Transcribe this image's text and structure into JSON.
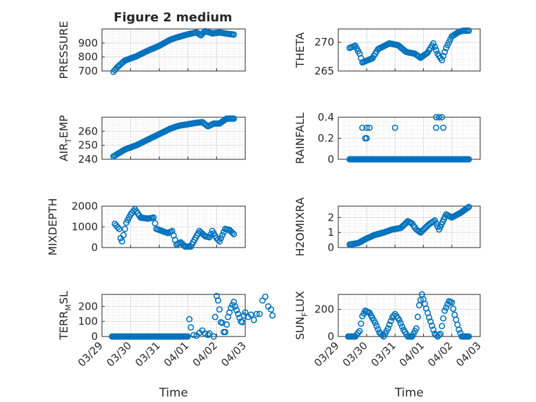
{
  "figure": {
    "title": "Figure 2 medium"
  },
  "colors": {
    "series": "#0072BD",
    "axis": "#262626",
    "grid": "#dcdcdc"
  },
  "chart_data": [
    {
      "type": "scatter",
      "id": "pressure",
      "title": "Figure 2 medium",
      "ylabel": "PRESSURE",
      "xlabel": "",
      "xlim": [
        "03/29",
        "04/03"
      ],
      "ylim": [
        700,
        1000
      ],
      "yticks": [
        "700",
        "800",
        "900"
      ],
      "ytick_values": [
        700,
        800,
        900
      ],
      "xticks": [
        "03/29",
        "03/30",
        "03/31",
        "04/01",
        "04/02",
        "04/03"
      ],
      "show_xticklabels": false,
      "grid": true,
      "series": [
        {
          "keypoints": [
            [
              0.4,
              695
            ],
            [
              0.55,
              730
            ],
            [
              0.8,
              775
            ],
            [
              1.2,
              805
            ],
            [
              1.6,
              845
            ],
            [
              2.0,
              880
            ],
            [
              2.4,
              925
            ],
            [
              2.75,
              948
            ],
            [
              3.0,
              962
            ],
            [
              3.3,
              975
            ],
            [
              3.45,
              955
            ],
            [
              3.6,
              985
            ],
            [
              3.85,
              968
            ],
            [
              4.1,
              975
            ],
            [
              4.4,
              965
            ],
            [
              4.6,
              960
            ]
          ]
        }
      ]
    },
    {
      "type": "scatter",
      "id": "theta",
      "ylabel": "THETA",
      "xlabel": "",
      "xlim": [
        "03/29",
        "04/03"
      ],
      "ylim": [
        265,
        272.3
      ],
      "yticks": [
        "265",
        "270"
      ],
      "ytick_values": [
        265,
        270
      ],
      "xticks": [
        "03/29",
        "03/30",
        "03/31",
        "04/01",
        "04/02",
        "04/03"
      ],
      "show_xticklabels": false,
      "grid": true,
      "series": [
        {
          "keypoints": [
            [
              0.4,
              269.0
            ],
            [
              0.6,
              269.4
            ],
            [
              0.75,
              268.0
            ],
            [
              0.85,
              266.5
            ],
            [
              1.2,
              267.2
            ],
            [
              1.4,
              268.8
            ],
            [
              1.8,
              269.8
            ],
            [
              2.1,
              269.5
            ],
            [
              2.4,
              268.3
            ],
            [
              2.7,
              268.0
            ],
            [
              2.9,
              267.3
            ],
            [
              3.15,
              268.2
            ],
            [
              3.35,
              269.8
            ],
            [
              3.5,
              268.0
            ],
            [
              3.65,
              266.9
            ],
            [
              3.8,
              269.0
            ],
            [
              4.0,
              271.0
            ],
            [
              4.25,
              271.8
            ],
            [
              4.4,
              272.0
            ],
            [
              4.6,
              272.0
            ]
          ]
        }
      ]
    },
    {
      "type": "scatter",
      "id": "air_temp",
      "ylabel": "AIR_TEMP",
      "xlabel": "",
      "xlim": [
        "03/29",
        "04/03"
      ],
      "ylim": [
        240,
        270
      ],
      "yticks": [
        "240",
        "250",
        "260"
      ],
      "ytick_values": [
        240,
        250,
        260
      ],
      "xticks": [
        "03/29",
        "03/30",
        "03/31",
        "04/01",
        "04/02",
        "04/03"
      ],
      "show_xticklabels": false,
      "grid": true,
      "series": [
        {
          "keypoints": [
            [
              0.4,
              242
            ],
            [
              0.8,
              247
            ],
            [
              1.2,
              250
            ],
            [
              1.6,
              254
            ],
            [
              2.0,
              258
            ],
            [
              2.4,
              262
            ],
            [
              2.7,
              264
            ],
            [
              3.0,
              265
            ],
            [
              3.3,
              266
            ],
            [
              3.5,
              266.5
            ],
            [
              3.7,
              263.5
            ],
            [
              3.9,
              265.5
            ],
            [
              4.1,
              265.5
            ],
            [
              4.35,
              269
            ],
            [
              4.6,
              269
            ]
          ]
        }
      ]
    },
    {
      "type": "scatter",
      "id": "rainfall",
      "ylabel": "RAINFALL",
      "xlabel": "",
      "xlim": [
        "03/29",
        "04/03"
      ],
      "ylim": [
        0,
        0.4
      ],
      "yticks": [
        "0",
        "0.2",
        "0.4"
      ],
      "ytick_values": [
        0,
        0.2,
        0.4
      ],
      "xticks": [
        "03/29",
        "03/30",
        "03/31",
        "04/01",
        "04/02",
        "04/03"
      ],
      "show_xticklabels": false,
      "grid": true,
      "baseline": {
        "from": 0.4,
        "to": 4.6,
        "value": 0
      },
      "series": [
        {
          "points": [
            [
              0.85,
              0.3
            ],
            [
              1.0,
              0.3
            ],
            [
              1.1,
              0.3
            ],
            [
              0.95,
              0.2
            ],
            [
              1.0,
              0.2
            ],
            [
              2.0,
              0.3
            ],
            [
              3.45,
              0.4
            ],
            [
              3.55,
              0.4
            ],
            [
              3.65,
              0.4
            ],
            [
              3.45,
              0.3
            ],
            [
              3.7,
              0.3
            ]
          ]
        }
      ]
    },
    {
      "type": "scatter",
      "id": "mixdepth",
      "ylabel": "MIXDEPTH",
      "xlabel": "",
      "xlim": [
        "03/29",
        "04/03"
      ],
      "ylim": [
        0,
        2000
      ],
      "yticks": [
        "0",
        "1000",
        "2000"
      ],
      "ytick_values": [
        0,
        1000,
        2000
      ],
      "xticks": [
        "03/29",
        "03/30",
        "03/31",
        "04/01",
        "04/02",
        "04/03"
      ],
      "show_xticklabels": false,
      "grid": true,
      "series": [
        {
          "keypoints": [
            [
              0.45,
              1150
            ],
            [
              0.6,
              900
            ],
            [
              0.65,
              450
            ],
            [
              0.7,
              300
            ],
            [
              0.85,
              1200
            ],
            [
              1.0,
              1600
            ],
            [
              1.15,
              1850
            ],
            [
              1.35,
              1450
            ],
            [
              1.6,
              1400
            ],
            [
              1.8,
              1450
            ],
            [
              1.9,
              900
            ],
            [
              2.1,
              800
            ],
            [
              2.3,
              700
            ],
            [
              2.45,
              800
            ],
            [
              2.6,
              150
            ],
            [
              2.75,
              250
            ],
            [
              2.9,
              50
            ],
            [
              3.1,
              50
            ],
            [
              3.4,
              800
            ],
            [
              3.6,
              550
            ],
            [
              3.75,
              500
            ],
            [
              3.85,
              800
            ],
            [
              4.0,
              450
            ],
            [
              4.1,
              300
            ],
            [
              4.3,
              900
            ],
            [
              4.45,
              850
            ],
            [
              4.6,
              650
            ]
          ]
        }
      ]
    },
    {
      "type": "scatter",
      "id": "h2omixra",
      "ylabel": "H2OMIXRA",
      "xlabel": "",
      "xlim": [
        "03/29",
        "04/03"
      ],
      "ylim": [
        0,
        2.75
      ],
      "yticks": [
        "0",
        "1",
        "2"
      ],
      "ytick_values": [
        0,
        1,
        2
      ],
      "xticks": [
        "03/29",
        "03/30",
        "03/31",
        "04/01",
        "04/02",
        "04/03"
      ],
      "show_xticklabels": false,
      "grid": true,
      "series": [
        {
          "keypoints": [
            [
              0.4,
              0.2
            ],
            [
              0.7,
              0.3
            ],
            [
              1.0,
              0.6
            ],
            [
              1.3,
              0.85
            ],
            [
              1.6,
              1.0
            ],
            [
              1.9,
              1.2
            ],
            [
              2.2,
              1.3
            ],
            [
              2.45,
              1.75
            ],
            [
              2.6,
              1.6
            ],
            [
              2.75,
              1.2
            ],
            [
              2.9,
              1.0
            ],
            [
              3.2,
              1.55
            ],
            [
              3.4,
              1.8
            ],
            [
              3.55,
              1.2
            ],
            [
              3.8,
              2.2
            ],
            [
              4.0,
              2.0
            ],
            [
              4.3,
              2.3
            ],
            [
              4.6,
              2.7
            ]
          ]
        }
      ]
    },
    {
      "type": "scatter",
      "id": "terr_msl",
      "ylabel": "TERR_MSL",
      "xlabel": "Time",
      "xlim": [
        "03/29",
        "04/03"
      ],
      "ylim": [
        0,
        280
      ],
      "yticks": [
        "0",
        "100",
        "200"
      ],
      "ytick_values": [
        0,
        100,
        200
      ],
      "xticks": [
        "03/29",
        "03/30",
        "03/31",
        "04/01",
        "04/02",
        "04/03"
      ],
      "show_xticklabels": true,
      "grid": true,
      "baseline": {
        "from": 0.35,
        "to": 3.0,
        "value": 0
      },
      "series": [
        {
          "points": [
            [
              3.05,
              115
            ],
            [
              3.1,
              60
            ],
            [
              3.2,
              10
            ],
            [
              3.3,
              5
            ],
            [
              3.4,
              25
            ],
            [
              3.5,
              40
            ],
            [
              3.6,
              20
            ],
            [
              3.7,
              10
            ],
            [
              3.75,
              20
            ],
            [
              3.9,
              0
            ],
            [
              3.95,
              130
            ],
            [
              4.0,
              270
            ],
            [
              4.05,
              240
            ],
            [
              4.1,
              180
            ],
            [
              4.15,
              95
            ],
            [
              4.2,
              90
            ],
            [
              4.25,
              30
            ],
            [
              4.3,
              30
            ],
            [
              4.35,
              80
            ],
            [
              4.4,
              130
            ],
            [
              4.45,
              160
            ],
            [
              4.5,
              190
            ],
            [
              4.55,
              210
            ],
            [
              4.6,
              230
            ],
            [
              4.65,
              200
            ],
            [
              4.7,
              175
            ],
            [
              4.75,
              150
            ],
            [
              4.8,
              125
            ],
            [
              4.85,
              100
            ],
            [
              4.9,
              95
            ],
            [
              4.95,
              140
            ],
            [
              5.0,
              160
            ],
            [
              5.1,
              130
            ],
            [
              5.2,
              145
            ],
            [
              5.3,
              110
            ],
            [
              5.4,
              150
            ],
            [
              5.5,
              150
            ],
            [
              5.6,
              240
            ],
            [
              5.7,
              265
            ],
            [
              5.8,
              200
            ],
            [
              5.9,
              180
            ],
            [
              5.95,
              140
            ]
          ]
        }
      ]
    },
    {
      "type": "scatter",
      "id": "sun_flux",
      "ylabel": "SUN_FLUX",
      "xlabel": "Time",
      "xlim": [
        "03/29",
        "04/03"
      ],
      "ylim": [
        0,
        310
      ],
      "yticks": [
        "0",
        "200"
      ],
      "ytick_values": [
        0,
        200
      ],
      "xticks": [
        "03/29",
        "03/30",
        "03/31",
        "04/01",
        "04/02",
        "04/03"
      ],
      "show_xticklabels": true,
      "grid": true,
      "series": [
        {
          "keypoints": [
            [
              0.35,
              0
            ],
            [
              0.6,
              0
            ],
            [
              0.75,
              40
            ],
            [
              0.85,
              150
            ],
            [
              0.95,
              190
            ],
            [
              1.1,
              175
            ],
            [
              1.3,
              100
            ],
            [
              1.45,
              30
            ],
            [
              1.6,
              0
            ],
            [
              1.75,
              60
            ],
            [
              1.9,
              140
            ],
            [
              2.0,
              165
            ],
            [
              2.15,
              120
            ],
            [
              2.3,
              50
            ],
            [
              2.45,
              0
            ],
            [
              2.6,
              0
            ],
            [
              2.75,
              60
            ],
            [
              2.85,
              230
            ],
            [
              2.95,
              310
            ],
            [
              3.05,
              240
            ],
            [
              3.2,
              140
            ],
            [
              3.4,
              20
            ],
            [
              3.5,
              0
            ],
            [
              3.6,
              20
            ],
            [
              3.75,
              190
            ],
            [
              3.9,
              260
            ],
            [
              4.0,
              250
            ],
            [
              4.1,
              160
            ],
            [
              4.25,
              50
            ],
            [
              4.35,
              0
            ],
            [
              4.6,
              0
            ]
          ]
        }
      ]
    }
  ]
}
